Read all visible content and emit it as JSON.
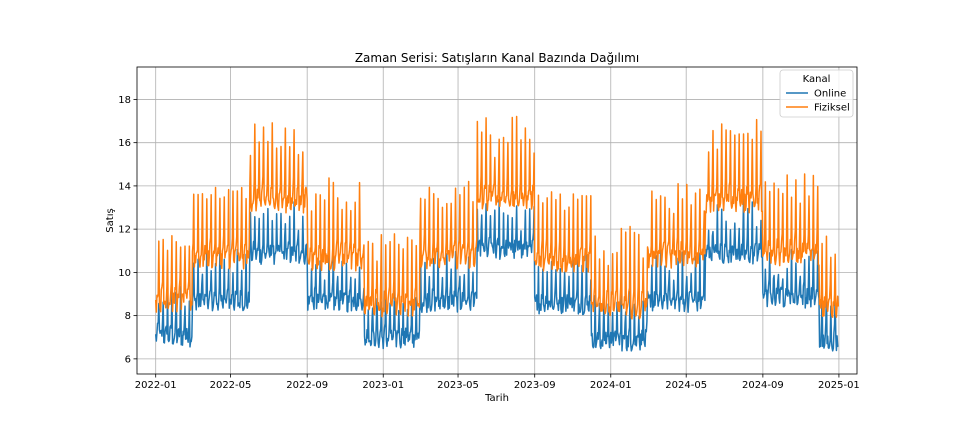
{
  "chart_data": {
    "type": "line",
    "title": "Zaman Serisi: Satışların Kanal Bazında Dağılımı",
    "xlabel": "Tarih",
    "ylabel": "Satış",
    "x_range": [
      "2021-12-02",
      "2025-01-30"
    ],
    "x_ticks": [
      "2022-01",
      "2022-05",
      "2022-09",
      "2023-01",
      "2023-05",
      "2023-09",
      "2024-01",
      "2024-05",
      "2024-09",
      "2025-01"
    ],
    "ylim": [
      5.3,
      19.5
    ],
    "y_ticks": [
      6,
      8,
      10,
      12,
      14,
      16,
      18
    ],
    "grid": true,
    "legend": {
      "title": "Kanal",
      "placement": "top-right"
    },
    "x_start": "2022-01-01",
    "x_end": "2024-12-31",
    "series": [
      {
        "name": "Online",
        "color": "#1f77b4",
        "daily_profile": [
          0.0,
          0.0,
          0.1,
          0.2,
          0.5,
          1.8,
          0.0
        ],
        "segments": [
          {
            "from": "2022-01-01",
            "to": "2022-02-28",
            "base": 7.0
          },
          {
            "from": "2022-03-01",
            "to": "2022-05-31",
            "base": 8.6
          },
          {
            "from": "2022-06-01",
            "to": "2022-08-31",
            "base": 10.8
          },
          {
            "from": "2022-09-01",
            "to": "2022-11-30",
            "base": 8.6
          },
          {
            "from": "2022-12-01",
            "to": "2023-02-28",
            "base": 6.9
          },
          {
            "from": "2023-03-01",
            "to": "2023-05-31",
            "base": 8.6
          },
          {
            "from": "2023-06-01",
            "to": "2023-08-31",
            "base": 11.0
          },
          {
            "from": "2023-09-01",
            "to": "2023-11-30",
            "base": 8.5
          },
          {
            "from": "2023-12-01",
            "to": "2024-02-29",
            "base": 6.8
          },
          {
            "from": "2024-03-01",
            "to": "2024-05-31",
            "base": 8.6
          },
          {
            "from": "2024-06-01",
            "to": "2024-08-31",
            "base": 10.8
          },
          {
            "from": "2024-09-01",
            "to": "2024-11-30",
            "base": 8.8
          },
          {
            "from": "2024-12-01",
            "to": "2024-12-31",
            "base": 6.8
          }
        ]
      },
      {
        "name": "Fiziksel",
        "color": "#ff7f0e",
        "daily_profile": [
          0.0,
          0.0,
          0.2,
          0.4,
          0.8,
          3.0,
          0.0
        ],
        "segments": [
          {
            "from": "2022-01-01",
            "to": "2022-02-28",
            "base": 8.6
          },
          {
            "from": "2022-03-01",
            "to": "2022-05-31",
            "base": 10.6
          },
          {
            "from": "2022-06-01",
            "to": "2022-08-31",
            "base": 13.2
          },
          {
            "from": "2022-09-01",
            "to": "2022-11-30",
            "base": 10.5
          },
          {
            "from": "2022-12-01",
            "to": "2023-02-28",
            "base": 8.4
          },
          {
            "from": "2023-03-01",
            "to": "2023-05-31",
            "base": 10.6
          },
          {
            "from": "2023-06-01",
            "to": "2023-08-31",
            "base": 13.3
          },
          {
            "from": "2023-09-01",
            "to": "2023-11-30",
            "base": 10.4
          },
          {
            "from": "2023-12-01",
            "to": "2024-02-29",
            "base": 8.3
          },
          {
            "from": "2024-03-01",
            "to": "2024-05-31",
            "base": 10.6
          },
          {
            "from": "2024-06-01",
            "to": "2024-08-31",
            "base": 13.2
          },
          {
            "from": "2024-09-01",
            "to": "2024-11-30",
            "base": 10.7
          },
          {
            "from": "2024-12-01",
            "to": "2024-12-31",
            "base": 8.3
          }
        ]
      }
    ]
  }
}
